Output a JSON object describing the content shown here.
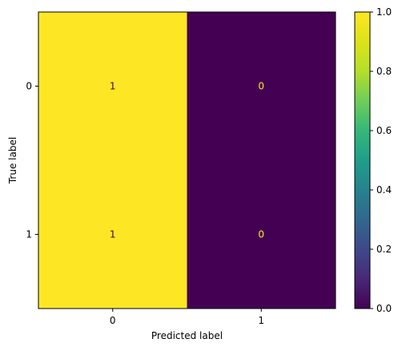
{
  "chart_data": {
    "type": "heatmap",
    "title": "",
    "xlabel": "Predicted label",
    "ylabel": "True label",
    "x_categories": [
      "0",
      "1"
    ],
    "y_categories": [
      "0",
      "1"
    ],
    "values": [
      [
        1,
        0
      ],
      [
        1,
        0
      ]
    ],
    "value_labels": [
      [
        "1",
        "0"
      ],
      [
        "1",
        "0"
      ]
    ],
    "colormap": "viridis",
    "color_low": "#440154",
    "color_high": "#fde725",
    "text_on_low": "#fde725",
    "text_on_high": "#440154",
    "colorbar": {
      "range": [
        0.0,
        1.0
      ],
      "ticks": [
        0.0,
        0.2,
        0.4,
        0.6,
        0.8,
        1.0
      ],
      "tick_labels": [
        "0.0",
        "0.2",
        "0.4",
        "0.6",
        "0.8",
        "1.0"
      ]
    }
  }
}
